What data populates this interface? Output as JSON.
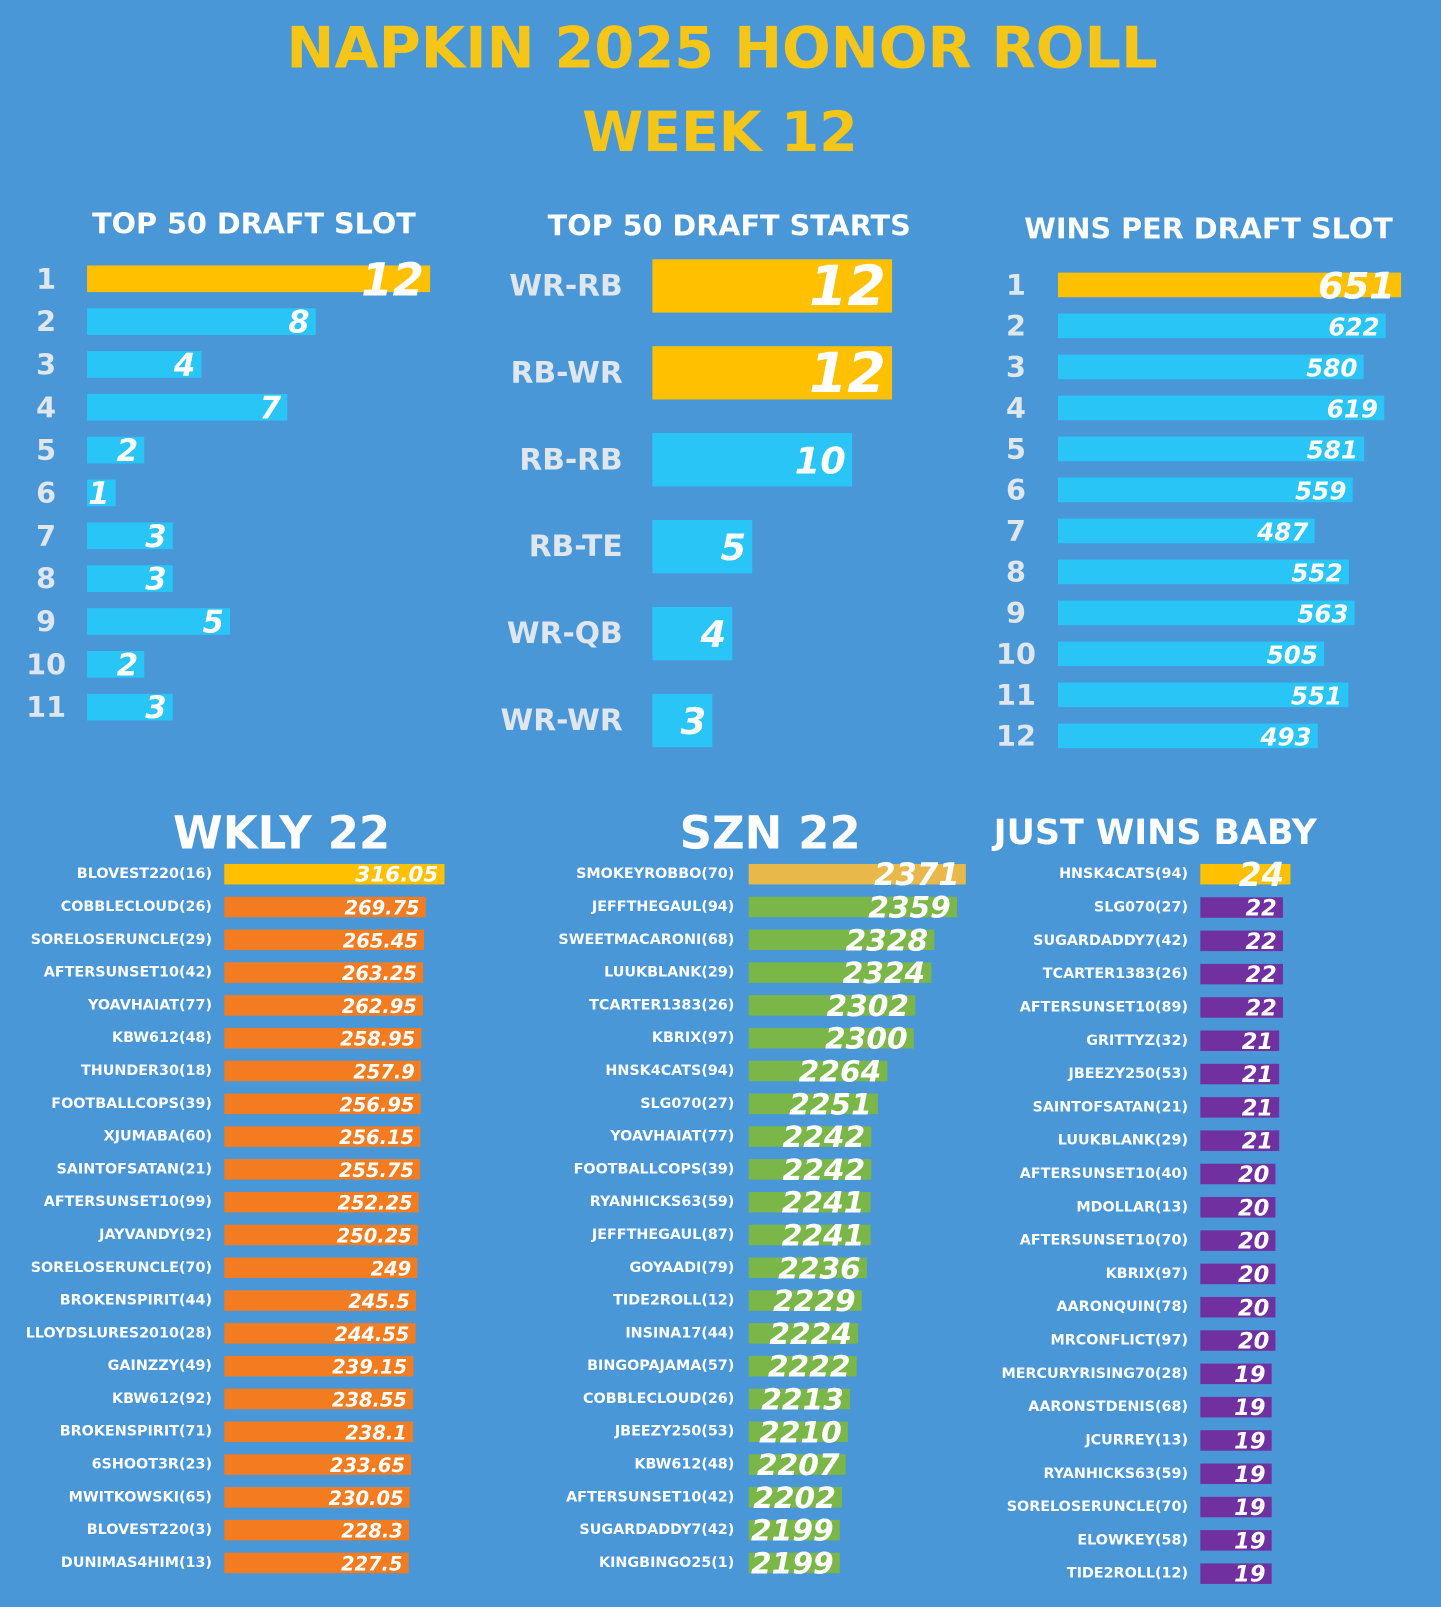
{
  "title": "NAPKIN 2025 HONOR ROLL",
  "subtitle": "WEEK 12",
  "chart_data": [
    {
      "type": "bar",
      "title": "TOP 50 DRAFT SLOT",
      "categories": [
        "1",
        "2",
        "3",
        "4",
        "5",
        "6",
        "7",
        "8",
        "9",
        "10",
        "11"
      ],
      "values": [
        12,
        8,
        4,
        7,
        2,
        1,
        3,
        3,
        5,
        2,
        3
      ],
      "colors": [
        "#ffc000",
        "#29c5f6",
        "#29c5f6",
        "#29c5f6",
        "#29c5f6",
        "#29c5f6",
        "#29c5f6",
        "#29c5f6",
        "#29c5f6",
        "#29c5f6",
        "#29c5f6"
      ]
    },
    {
      "type": "bar",
      "title": "TOP 50 DRAFT STARTS",
      "categories": [
        "WR-RB",
        "RB-WR",
        "RB-RB",
        "RB-TE",
        "WR-QB",
        "WR-WR"
      ],
      "values": [
        12,
        12,
        10,
        5,
        4,
        3
      ],
      "colors": [
        "#ffc000",
        "#ffc000",
        "#29c5f6",
        "#29c5f6",
        "#29c5f6",
        "#29c5f6"
      ]
    },
    {
      "type": "bar",
      "title": "WINS PER DRAFT SLOT",
      "categories": [
        "1",
        "2",
        "3",
        "4",
        "5",
        "6",
        "7",
        "8",
        "9",
        "10",
        "11",
        "12"
      ],
      "values": [
        651,
        622,
        580,
        619,
        581,
        559,
        487,
        552,
        563,
        505,
        551,
        493
      ],
      "colors": [
        "#ffc000",
        "#29c5f6",
        "#29c5f6",
        "#29c5f6",
        "#29c5f6",
        "#29c5f6",
        "#29c5f6",
        "#29c5f6",
        "#29c5f6",
        "#29c5f6",
        "#29c5f6",
        "#29c5f6"
      ]
    },
    {
      "type": "bar",
      "title": "WKLY 22",
      "categories": [
        "BLOVEST220(16)",
        "COBBLECLOUD(26)",
        "SORELOSERUNCLE(29)",
        "AFTERSUNSET10(42)",
        "YOAVHAIAT(77)",
        "KBW612(48)",
        "THUNDER30(18)",
        "FOOTBALLCOPS(39)",
        "XJUMABA(60)",
        "SAINTOFSATAN(21)",
        "AFTERSUNSET10(99)",
        "JAYVANDY(92)",
        "SORELOSERUNCLE(70)",
        "BROKENSPIRIT(44)",
        "LLOYDSLURES2010(28)",
        "GAINZZY(49)",
        "KBW612(92)",
        "BROKENSPIRIT(71)",
        "6SHOOT3R(23)",
        "MWITKOWSKI(65)",
        "BLOVEST220(3)",
        "DUNIMAS4HIM(13)"
      ],
      "values": [
        316.05,
        269.75,
        265.45,
        263.25,
        262.95,
        258.95,
        257.9,
        256.95,
        256.15,
        255.75,
        252.25,
        250.25,
        249,
        245.5,
        244.55,
        239.15,
        238.55,
        238.1,
        233.65,
        230.05,
        228.3,
        227.5
      ],
      "colors": [
        "#ffc000",
        "#f47c20",
        "#f47c20",
        "#f47c20",
        "#f47c20",
        "#f47c20",
        "#f47c20",
        "#f47c20",
        "#f47c20",
        "#f47c20",
        "#f47c20",
        "#f47c20",
        "#f47c20",
        "#f47c20",
        "#f47c20",
        "#f47c20",
        "#f47c20",
        "#f47c20",
        "#f47c20",
        "#f47c20",
        "#f47c20",
        "#f47c20"
      ]
    },
    {
      "type": "bar",
      "title": "SZN 22",
      "categories": [
        "SMOKEYROBBO(70)",
        "JEFFTHEGAUL(94)",
        "SWEETMACARONI(68)",
        "LUUKBLANK(29)",
        "TCARTER1383(26)",
        "KBRIX(97)",
        "HNSK4CATS(94)",
        "SLG070(27)",
        "YOAVHAIAT(77)",
        "FOOTBALLCOPS(39)",
        "RYANHICKS63(59)",
        "JEFFTHEGAUL(87)",
        "GOYAADI(79)",
        "TIDE2ROLL(12)",
        "INSINA17(44)",
        "BINGOPAJAMA(57)",
        "COBBLECLOUD(26)",
        "JBEEZY250(53)",
        "KBW612(48)",
        "AFTERSUNSET10(42)",
        "SUGARDADDY7(42)",
        "KINGBINGO25(1)"
      ],
      "values": [
        2371,
        2359,
        2328,
        2324,
        2302,
        2300,
        2264,
        2251,
        2242,
        2242,
        2241,
        2241,
        2236,
        2229,
        2224,
        2222,
        2213,
        2210,
        2207,
        2202,
        2199,
        2199
      ],
      "colors": [
        "#e8b84a",
        "#7ab648",
        "#7ab648",
        "#7ab648",
        "#7ab648",
        "#7ab648",
        "#7ab648",
        "#7ab648",
        "#7ab648",
        "#7ab648",
        "#7ab648",
        "#7ab648",
        "#7ab648",
        "#7ab648",
        "#7ab648",
        "#7ab648",
        "#7ab648",
        "#7ab648",
        "#7ab648",
        "#7ab648",
        "#7ab648",
        "#7ab648"
      ]
    },
    {
      "type": "bar",
      "title": "JUST WINS BABY",
      "categories": [
        "HNSK4CATS(94)",
        "SLG070(27)",
        "SUGARDADDY7(42)",
        "TCARTER1383(26)",
        "AFTERSUNSET10(89)",
        "GRITTYZ(32)",
        "JBEEZY250(53)",
        "SAINTOFSATAN(21)",
        "LUUKBLANK(29)",
        "AFTERSUNSET10(40)",
        "MDOLLAR(13)",
        "AFTERSUNSET10(70)",
        "KBRIX(97)",
        "AARONQUIN(78)",
        "MRCONFLICT(97)",
        "MERCURYRISING70(28)",
        "AARONSTDENIS(68)",
        "JCURREY(13)",
        "RYANHICKS63(59)",
        "SORELOSERUNCLE(70)",
        "ELOWKEY(58)",
        "TIDE2ROLL(12)"
      ],
      "values": [
        24,
        22,
        22,
        22,
        22,
        21,
        21,
        21,
        21,
        20,
        20,
        20,
        20,
        20,
        20,
        19,
        19,
        19,
        19,
        19,
        19,
        19
      ],
      "colors": [
        "#ffc000",
        "#7030a0",
        "#7030a0",
        "#7030a0",
        "#7030a0",
        "#7030a0",
        "#7030a0",
        "#7030a0",
        "#7030a0",
        "#7030a0",
        "#7030a0",
        "#7030a0",
        "#7030a0",
        "#7030a0",
        "#7030a0",
        "#7030a0",
        "#7030a0",
        "#7030a0",
        "#7030a0",
        "#7030a0",
        "#7030a0",
        "#7030a0"
      ]
    }
  ]
}
